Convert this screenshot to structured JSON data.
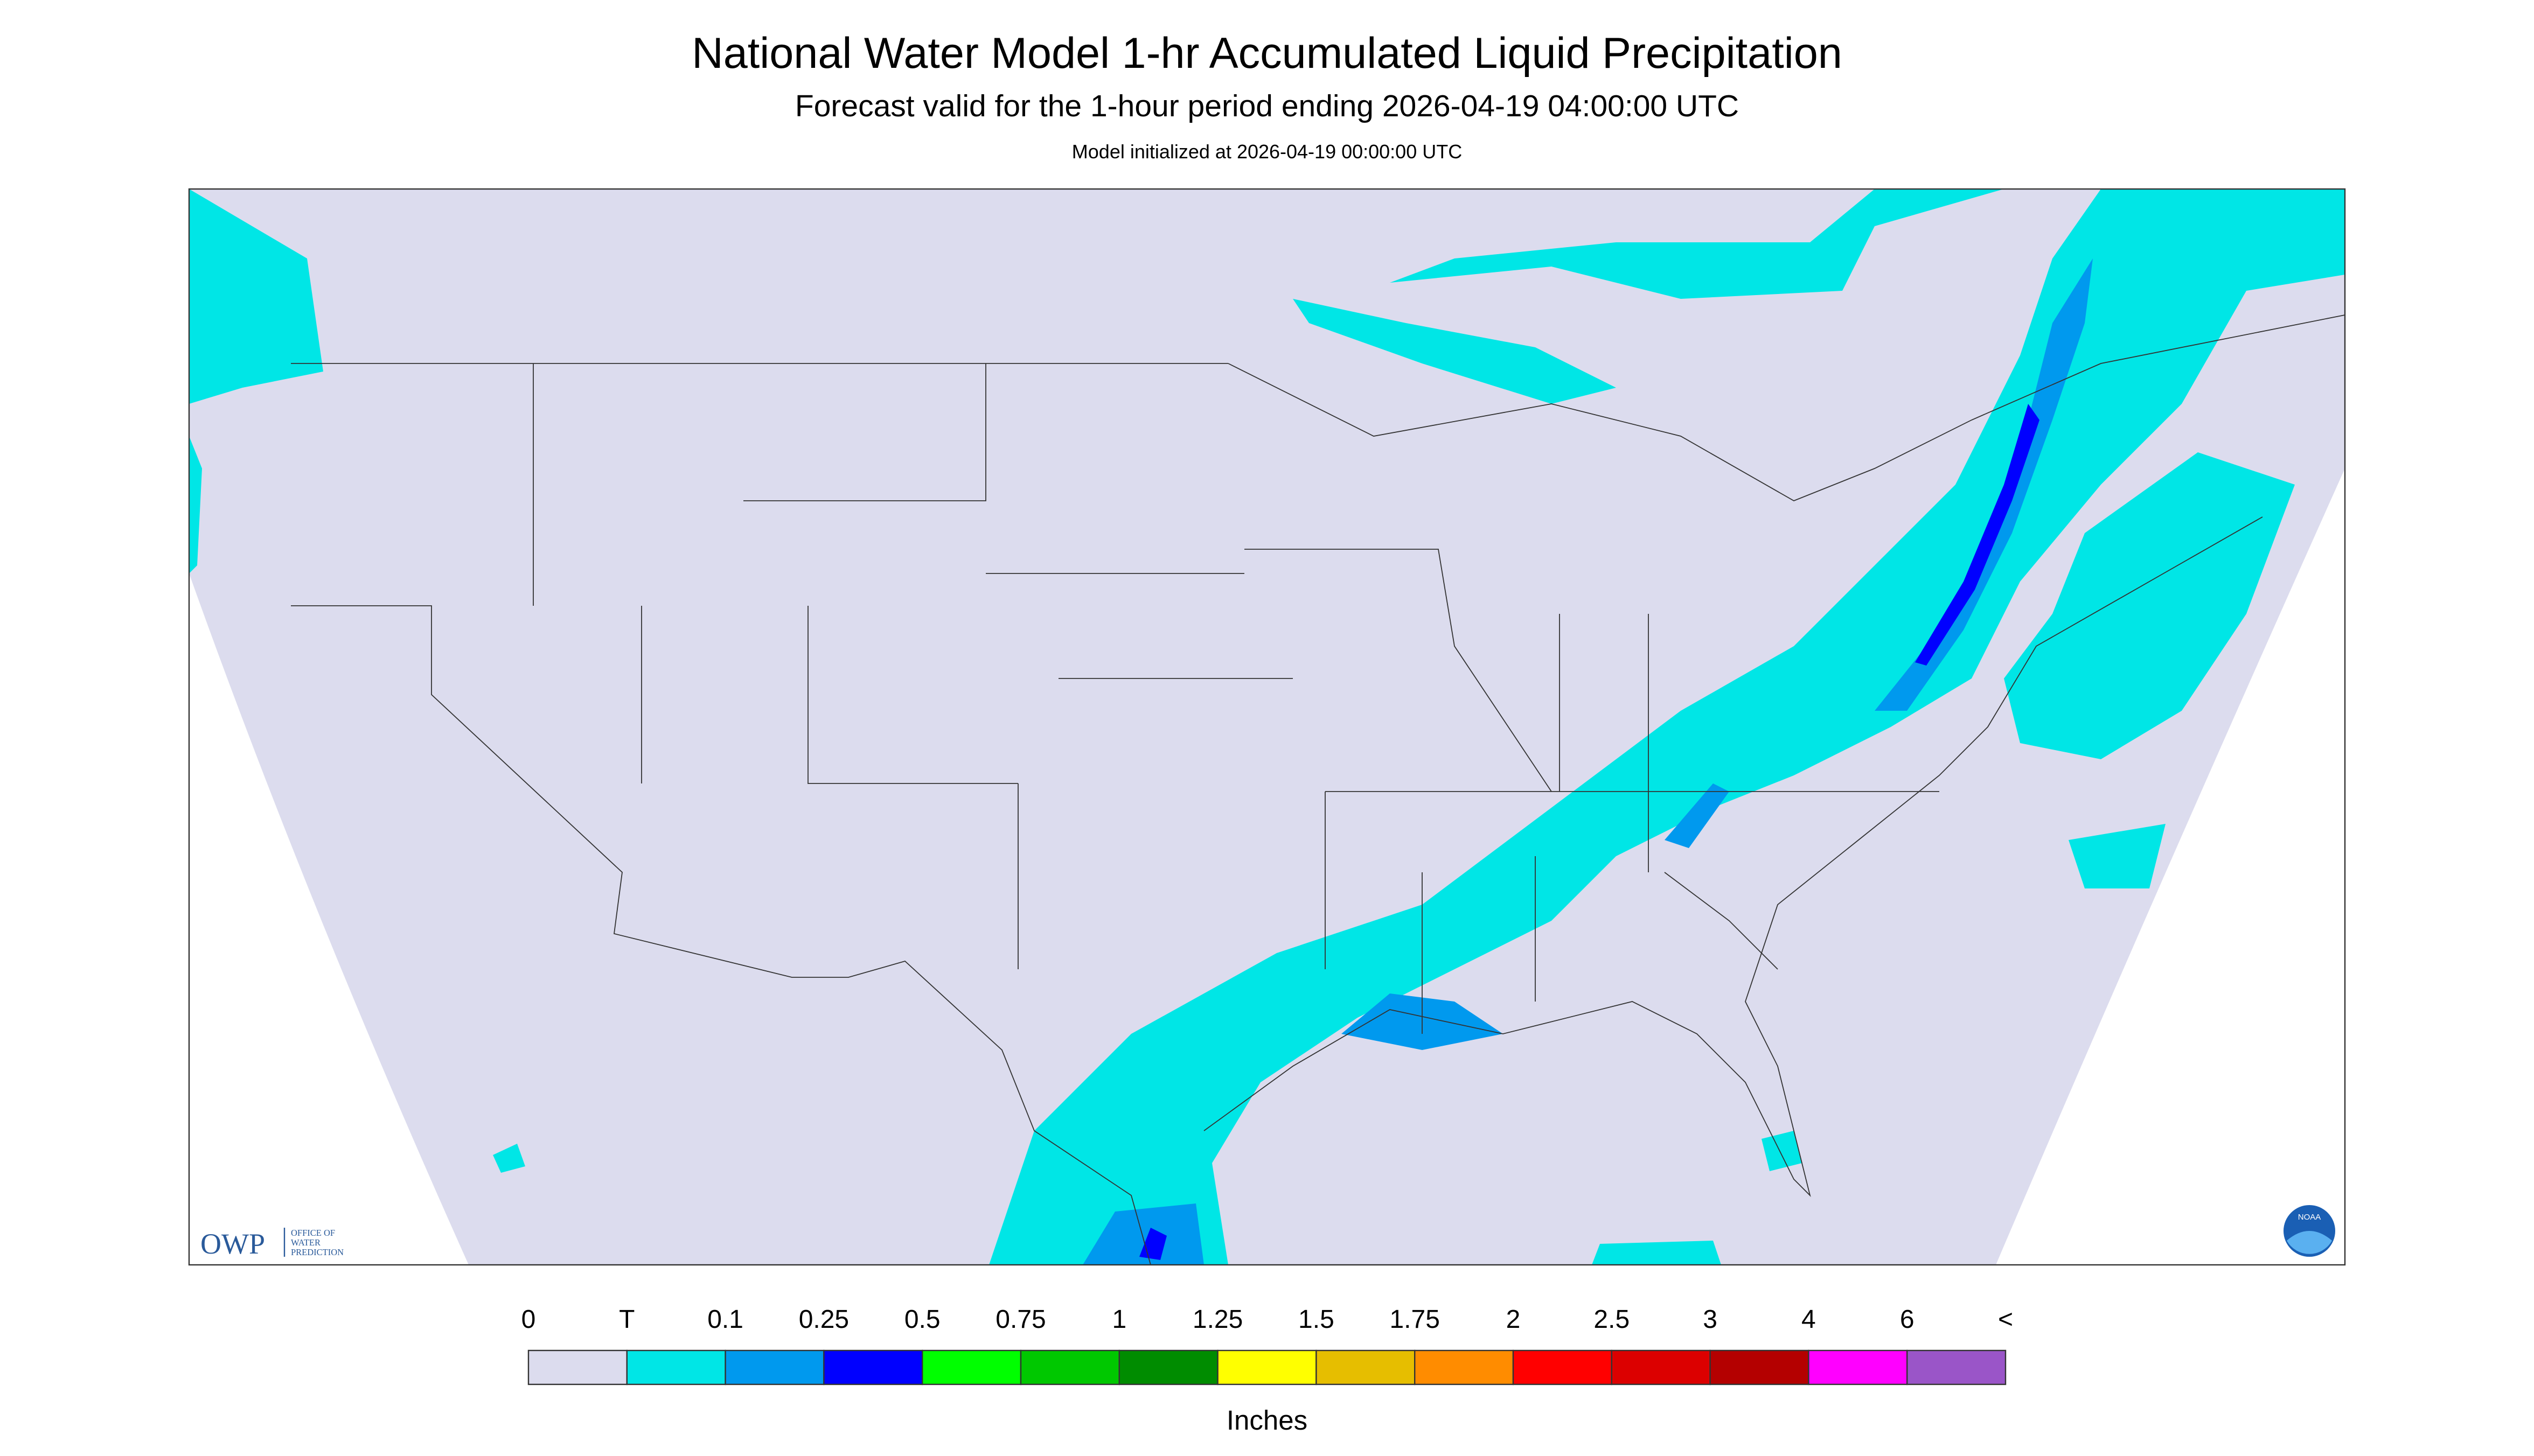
{
  "header": {
    "title": "National Water Model 1-hr Accumulated Liquid Precipitation",
    "subtitle": "Forecast valid for the 1-hour period ending 2026-04-19 04:00:00 UTC",
    "note": "Model initialized at 2026-04-19 00:00:00 UTC"
  },
  "logos": {
    "owp": "OWP",
    "owp_lines": [
      "OFFICE OF",
      "WATER",
      "PREDICTION"
    ],
    "noaa": "NOAA"
  },
  "legend": {
    "labels": [
      "0",
      "T",
      "0.1",
      "0.25",
      "0.5",
      "0.75",
      "1",
      "1.25",
      "1.5",
      "1.75",
      "2",
      "2.5",
      "3",
      "4",
      "6",
      "<"
    ],
    "colors": [
      "#dcdcee",
      "#00e6e6",
      "#0099ee",
      "#0000ff",
      "#00ff00",
      "#00c800",
      "#008c00",
      "#ffff00",
      "#e6be00",
      "#ff8c00",
      "#ff0000",
      "#dc0000",
      "#b40000",
      "#ff00ff",
      "#9a55c8"
    ],
    "unit": "Inches"
  }
}
